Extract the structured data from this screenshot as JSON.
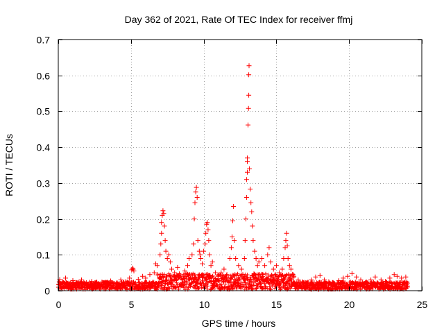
{
  "chart_data": {
    "type": "scatter",
    "title": "Day 362 of 2021, Rate Of TEC Index for receiver ffmj",
    "xlabel": "GPS time / hours",
    "ylabel": "ROTI / TECUs",
    "xlim": [
      0,
      25
    ],
    "ylim": [
      0,
      0.7
    ],
    "xticks": [
      0,
      5,
      10,
      15,
      20,
      25
    ],
    "yticks": [
      0,
      0.1,
      0.2,
      0.3,
      0.4,
      0.5,
      0.6,
      0.7
    ],
    "xtick_labels": [
      "0",
      "5",
      "10",
      "15",
      "20",
      "25"
    ],
    "ytick_labels": [
      "0",
      "0.1",
      "0.2",
      "0.3",
      "0.4",
      "0.5",
      "0.6",
      "0.7"
    ],
    "grid": true,
    "marker": "+",
    "color": "#ff0000",
    "series": [
      {
        "name": "ROTI",
        "points": [
          [
            0.1,
            0.031
          ],
          [
            0.3,
            0.025
          ],
          [
            0.5,
            0.035
          ],
          [
            0.8,
            0.02
          ],
          [
            1.0,
            0.028
          ],
          [
            1.3,
            0.022
          ],
          [
            1.6,
            0.03
          ],
          [
            2.0,
            0.018
          ],
          [
            2.3,
            0.026
          ],
          [
            2.6,
            0.02
          ],
          [
            3.0,
            0.024
          ],
          [
            3.3,
            0.019
          ],
          [
            3.6,
            0.027
          ],
          [
            4.0,
            0.021
          ],
          [
            4.3,
            0.03
          ],
          [
            4.6,
            0.025
          ],
          [
            4.9,
            0.035
          ],
          [
            5.05,
            0.058
          ],
          [
            5.1,
            0.063
          ],
          [
            5.15,
            0.06
          ],
          [
            5.2,
            0.055
          ],
          [
            5.5,
            0.032
          ],
          [
            5.8,
            0.04
          ],
          [
            6.0,
            0.035
          ],
          [
            6.3,
            0.045
          ],
          [
            6.6,
            0.05
          ],
          [
            6.7,
            0.075
          ],
          [
            6.8,
            0.07
          ],
          [
            7.0,
            0.1
          ],
          [
            7.05,
            0.13
          ],
          [
            7.1,
            0.16
          ],
          [
            7.1,
            0.19
          ],
          [
            7.15,
            0.21
          ],
          [
            7.2,
            0.223
          ],
          [
            7.25,
            0.215
          ],
          [
            7.3,
            0.18
          ],
          [
            7.35,
            0.14
          ],
          [
            7.4,
            0.11
          ],
          [
            7.5,
            0.09
          ],
          [
            7.6,
            0.1
          ],
          [
            7.7,
            0.08
          ],
          [
            7.8,
            0.06
          ],
          [
            8.0,
            0.05
          ],
          [
            8.2,
            0.065
          ],
          [
            8.4,
            0.04
          ],
          [
            8.7,
            0.055
          ],
          [
            8.9,
            0.07
          ],
          [
            9.0,
            0.09
          ],
          [
            9.2,
            0.1
          ],
          [
            9.3,
            0.13
          ],
          [
            9.35,
            0.2
          ],
          [
            9.4,
            0.245
          ],
          [
            9.45,
            0.275
          ],
          [
            9.5,
            0.288
          ],
          [
            9.55,
            0.26
          ],
          [
            9.6,
            0.14
          ],
          [
            9.7,
            0.11
          ],
          [
            9.75,
            0.1
          ],
          [
            9.8,
            0.09
          ],
          [
            9.9,
            0.075
          ],
          [
            10.0,
            0.11
          ],
          [
            10.1,
            0.13
          ],
          [
            10.15,
            0.16
          ],
          [
            10.2,
            0.185
          ],
          [
            10.25,
            0.19
          ],
          [
            10.3,
            0.17
          ],
          [
            10.35,
            0.14
          ],
          [
            10.4,
            0.1
          ],
          [
            10.5,
            0.07
          ],
          [
            10.6,
            0.08
          ],
          [
            10.8,
            0.05
          ],
          [
            11.0,
            0.04
          ],
          [
            11.2,
            0.05
          ],
          [
            11.4,
            0.06
          ],
          [
            11.6,
            0.045
          ],
          [
            11.8,
            0.09
          ],
          [
            11.9,
            0.12
          ],
          [
            11.95,
            0.15
          ],
          [
            12.0,
            0.195
          ],
          [
            12.05,
            0.235
          ],
          [
            12.1,
            0.14
          ],
          [
            12.2,
            0.09
          ],
          [
            12.4,
            0.07
          ],
          [
            12.6,
            0.06
          ],
          [
            12.8,
            0.09
          ],
          [
            12.85,
            0.14
          ],
          [
            12.9,
            0.2
          ],
          [
            12.95,
            0.26
          ],
          [
            12.95,
            0.31
          ],
          [
            13.0,
            0.33
          ],
          [
            13.0,
            0.36
          ],
          [
            13.0,
            0.37
          ],
          [
            13.05,
            0.462
          ],
          [
            13.08,
            0.508
          ],
          [
            13.1,
            0.545
          ],
          [
            13.1,
            0.602
          ],
          [
            13.12,
            0.627
          ],
          [
            13.15,
            0.34
          ],
          [
            13.2,
            0.283
          ],
          [
            13.25,
            0.245
          ],
          [
            13.3,
            0.22
          ],
          [
            13.35,
            0.18
          ],
          [
            13.4,
            0.14
          ],
          [
            13.5,
            0.11
          ],
          [
            13.6,
            0.09
          ],
          [
            13.7,
            0.07
          ],
          [
            13.8,
            0.08
          ],
          [
            14.0,
            0.09
          ],
          [
            14.2,
            0.07
          ],
          [
            14.4,
            0.1
          ],
          [
            14.5,
            0.12
          ],
          [
            14.6,
            0.08
          ],
          [
            14.8,
            0.06
          ],
          [
            15.0,
            0.07
          ],
          [
            15.2,
            0.05
          ],
          [
            15.4,
            0.06
          ],
          [
            15.5,
            0.09
          ],
          [
            15.6,
            0.12
          ],
          [
            15.65,
            0.14
          ],
          [
            15.7,
            0.16
          ],
          [
            15.75,
            0.125
          ],
          [
            15.8,
            0.09
          ],
          [
            15.9,
            0.07
          ],
          [
            16.0,
            0.06
          ],
          [
            16.2,
            0.04
          ],
          [
            16.5,
            0.03
          ],
          [
            16.8,
            0.025
          ],
          [
            17.0,
            0.022
          ],
          [
            17.4,
            0.03
          ],
          [
            17.7,
            0.038
          ],
          [
            18.0,
            0.042
          ],
          [
            18.3,
            0.03
          ],
          [
            18.6,
            0.025
          ],
          [
            19.0,
            0.02
          ],
          [
            19.3,
            0.028
          ],
          [
            19.6,
            0.035
          ],
          [
            19.9,
            0.04
          ],
          [
            20.2,
            0.048
          ],
          [
            20.5,
            0.038
          ],
          [
            20.8,
            0.03
          ],
          [
            21.2,
            0.024
          ],
          [
            21.5,
            0.03
          ],
          [
            21.8,
            0.038
          ],
          [
            22.2,
            0.03
          ],
          [
            22.5,
            0.026
          ],
          [
            22.8,
            0.035
          ],
          [
            23.1,
            0.045
          ],
          [
            23.3,
            0.04
          ],
          [
            23.6,
            0.035
          ],
          [
            23.9,
            0.038
          ]
        ]
      }
    ]
  }
}
